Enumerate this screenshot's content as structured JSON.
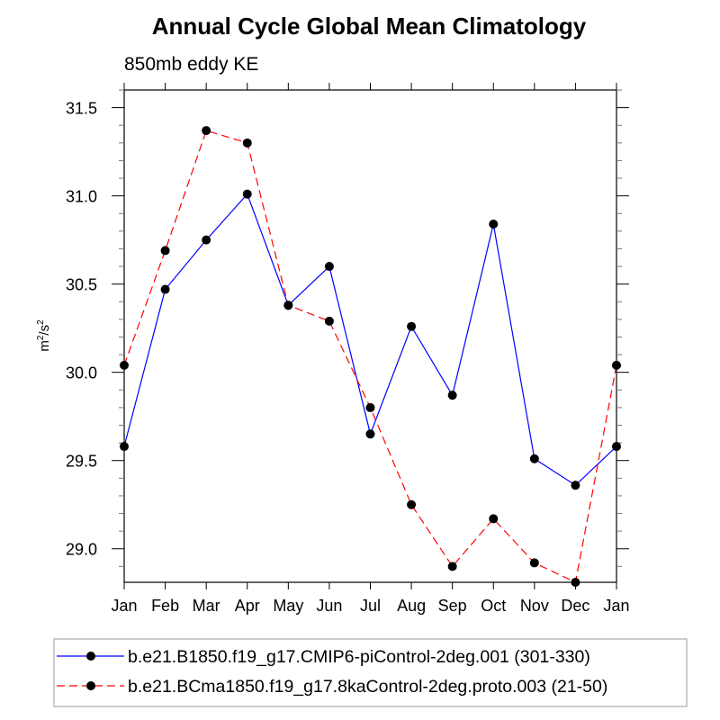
{
  "chart_data": {
    "type": "line",
    "title": "Annual Cycle Global Mean Climatology",
    "subtitle": "850mb eddy KE",
    "xlabel": "",
    "ylabel": "m2/s2",
    "ylabel_parts": {
      "base1": "m",
      "sup1": "2",
      "mid": "/s",
      "sup2": "2"
    },
    "categories": [
      "Jan",
      "Feb",
      "Mar",
      "Apr",
      "May",
      "Jun",
      "Jul",
      "Aug",
      "Sep",
      "Oct",
      "Nov",
      "Dec",
      "Jan"
    ],
    "ylim": [
      28.81,
      31.6
    ],
    "yticks": [
      29.0,
      29.5,
      30.0,
      30.5,
      31.0,
      31.5
    ],
    "ytick_labels": [
      "29.0",
      "29.5",
      "30.0",
      "30.5",
      "31.0",
      "31.5"
    ],
    "yminor_step": 0.1,
    "grid": false,
    "legend_position": "bottom",
    "series": [
      {
        "name": "b.e21.B1850.f19_g17.CMIP6-piControl-2deg.001 (301-330)",
        "color": "#0000ff",
        "dash": "solid",
        "marker": "filled-circle",
        "values": [
          29.58,
          30.47,
          30.75,
          31.01,
          30.38,
          30.6,
          29.65,
          30.26,
          29.87,
          30.84,
          29.51,
          29.36,
          29.58
        ]
      },
      {
        "name": "b.e21.BCma1850.f19_g17.8kaControl-2deg.proto.003 (21-50)",
        "color": "#ff0000",
        "dash": "dashed",
        "marker": "filled-circle",
        "values": [
          30.04,
          30.69,
          31.37,
          31.3,
          30.38,
          30.29,
          29.8,
          29.25,
          28.9,
          29.17,
          28.92,
          28.81,
          30.04
        ]
      }
    ]
  }
}
